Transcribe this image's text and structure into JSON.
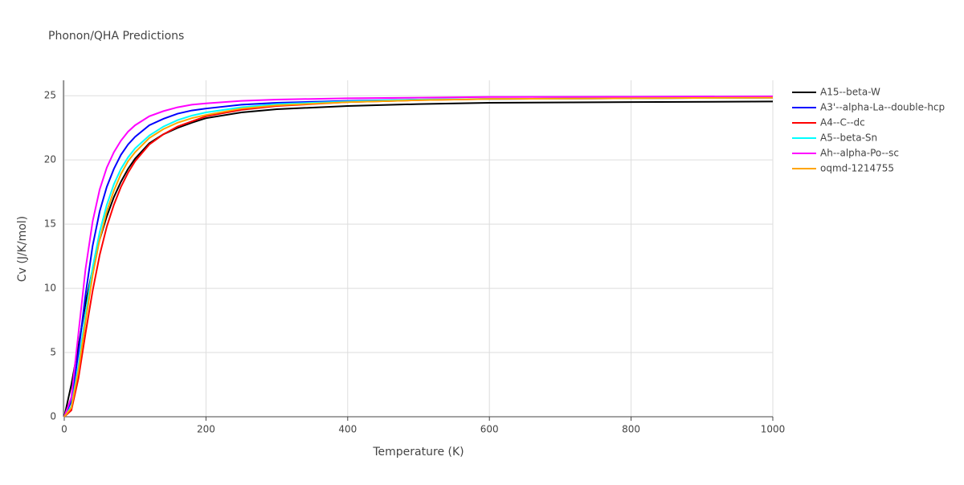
{
  "chart_data": {
    "type": "line",
    "title": "Phonon/QHA Predictions",
    "x_label": "Temperature (K)",
    "y_label": "Cv (J/K/mol)",
    "x": [
      0,
      10,
      20,
      30,
      40,
      50,
      60,
      70,
      80,
      90,
      100,
      120,
      140,
      160,
      180,
      200,
      250,
      300,
      400,
      500,
      600,
      800,
      1000
    ],
    "series": [
      {
        "name": "A15--beta-W",
        "color": "#000000",
        "values": [
          0,
          2.5,
          5.5,
          8.8,
          11.5,
          13.8,
          15.6,
          17.1,
          18.3,
          19.3,
          20.1,
          21.3,
          22.0,
          22.5,
          22.9,
          23.25,
          23.7,
          23.95,
          24.2,
          24.35,
          24.45,
          24.5,
          24.55
        ]
      },
      {
        "name": "A3'--alpha-La--double-hcp",
        "color": "#0000ff",
        "values": [
          0,
          1.2,
          5,
          9.5,
          13.3,
          16.0,
          17.9,
          19.3,
          20.4,
          21.2,
          21.8,
          22.7,
          23.2,
          23.6,
          23.85,
          24.0,
          24.3,
          24.45,
          24.6,
          24.7,
          24.75,
          24.8,
          24.85
        ]
      },
      {
        "name": "A4--C--dc",
        "color": "#ff0000",
        "values": [
          0,
          0.5,
          3,
          6.5,
          9.8,
          12.6,
          14.8,
          16.5,
          17.9,
          19.0,
          19.9,
          21.2,
          22.0,
          22.6,
          23.0,
          23.4,
          23.9,
          24.2,
          24.5,
          24.65,
          24.75,
          24.8,
          24.85
        ]
      },
      {
        "name": "A5--beta-Sn",
        "color": "#00ffff",
        "values": [
          0,
          0.8,
          4,
          8,
          11.6,
          14.4,
          16.5,
          18.1,
          19.3,
          20.2,
          20.9,
          21.9,
          22.6,
          23.1,
          23.45,
          23.7,
          24.1,
          24.35,
          24.55,
          24.7,
          24.75,
          24.8,
          24.85
        ]
      },
      {
        "name": "Ah--alpha-Po--sc",
        "color": "#ff00ff",
        "values": [
          0,
          1.5,
          6.5,
          11.5,
          15.2,
          17.7,
          19.4,
          20.6,
          21.5,
          22.2,
          22.7,
          23.4,
          23.8,
          24.1,
          24.3,
          24.4,
          24.6,
          24.7,
          24.8,
          24.85,
          24.9,
          24.92,
          24.95
        ]
      },
      {
        "name": "oqmd-1214755",
        "color": "#ffa500",
        "values": [
          0,
          0.7,
          3.6,
          7.4,
          11,
          13.8,
          16,
          17.6,
          18.9,
          19.9,
          20.6,
          21.7,
          22.4,
          22.9,
          23.25,
          23.5,
          24.0,
          24.25,
          24.5,
          24.65,
          24.75,
          24.8,
          24.85
        ]
      }
    ],
    "xlim": [
      0,
      1000
    ],
    "xticks": [
      0,
      200,
      400,
      600,
      800,
      1000
    ],
    "ylim": [
      0,
      26.2
    ],
    "yticks": [
      0,
      5,
      10,
      15,
      20,
      25
    ],
    "grid": true,
    "legend": "right"
  }
}
